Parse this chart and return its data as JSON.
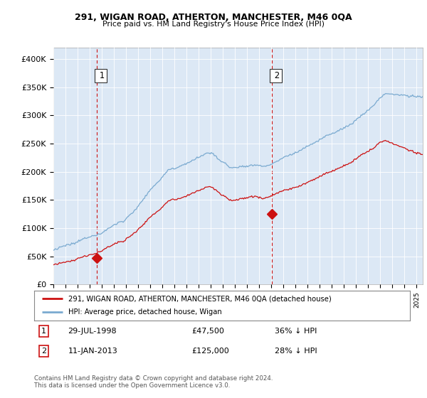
{
  "title1": "291, WIGAN ROAD, ATHERTON, MANCHESTER, M46 0QA",
  "title2": "Price paid vs. HM Land Registry's House Price Index (HPI)",
  "ylabel_ticks": [
    "£0",
    "£50K",
    "£100K",
    "£150K",
    "£200K",
    "£250K",
    "£300K",
    "£350K",
    "£400K"
  ],
  "ytick_values": [
    0,
    50000,
    100000,
    150000,
    200000,
    250000,
    300000,
    350000,
    400000
  ],
  "ylim": [
    0,
    420000
  ],
  "xlim_start": 1995.0,
  "xlim_end": 2025.5,
  "purchase1_date": 1998.57,
  "purchase1_price": 47500,
  "purchase2_date": 2013.03,
  "purchase2_price": 125000,
  "legend_line1": "291, WIGAN ROAD, ATHERTON, MANCHESTER, M46 0QA (detached house)",
  "legend_line2": "HPI: Average price, detached house, Wigan",
  "footer": "Contains HM Land Registry data © Crown copyright and database right 2024.\nThis data is licensed under the Open Government Licence v3.0.",
  "hpi_color": "#7aaad0",
  "price_color": "#cc1111",
  "vline_color": "#cc1111",
  "background_color": "#ffffff",
  "plot_bg_color": "#dce8f5",
  "grid_color": "#ffffff"
}
